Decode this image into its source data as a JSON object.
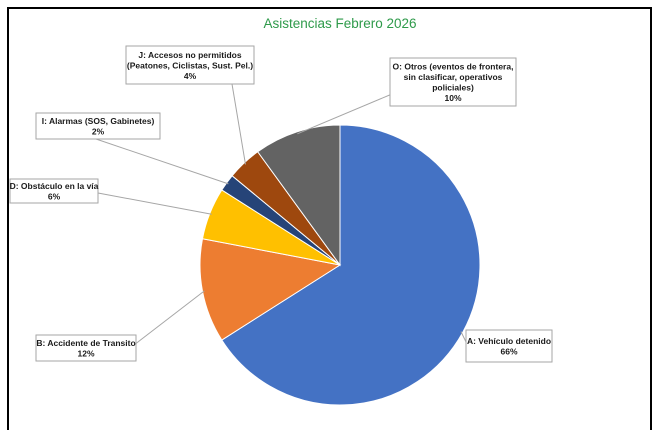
{
  "chart_data": {
    "type": "pie",
    "title": "Asistencias Febrero 2026",
    "slices": [
      {
        "label_lines": [
          "A: Vehículo detenido"
        ],
        "pct_label": "66%",
        "value": 66,
        "color": "#4472C4"
      },
      {
        "label_lines": [
          "B: Accidente de Transito"
        ],
        "pct_label": "12%",
        "value": 12,
        "color": "#ED7D31"
      },
      {
        "label_lines": [
          "D: Obstáculo en la vía"
        ],
        "pct_label": "6%",
        "value": 6,
        "color": "#FFC000"
      },
      {
        "label_lines": [
          "I: Alarmas (SOS, Gabinetes)"
        ],
        "pct_label": "2%",
        "value": 2,
        "color": "#264478"
      },
      {
        "label_lines": [
          "J: Accesos no permitidos",
          "(Peatones, Ciclistas, Sust. Pel.)"
        ],
        "pct_label": "4%",
        "value": 4,
        "color": "#9E480E"
      },
      {
        "label_lines": [
          "O: Otros (eventos de frontera,",
          "sin clasificar, operativos",
          "policiales)"
        ],
        "pct_label": "10%",
        "value": 10,
        "color": "#636363"
      }
    ],
    "legend": "none"
  }
}
